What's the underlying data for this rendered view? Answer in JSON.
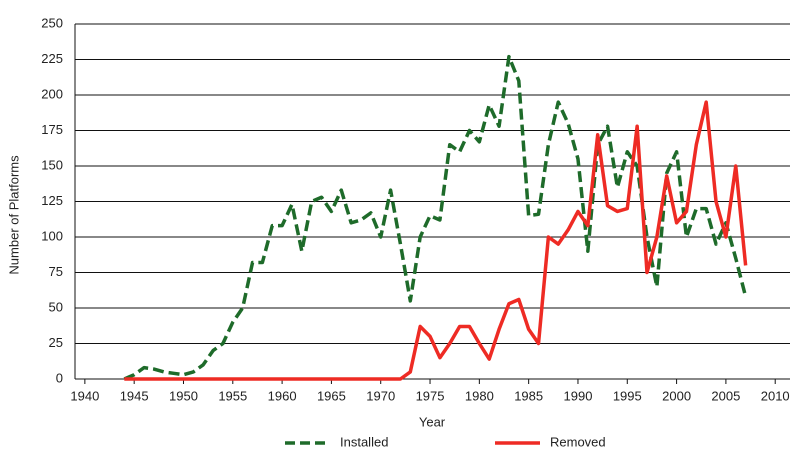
{
  "chart_data": {
    "type": "line",
    "x_label": "Year",
    "y_label": "Number of Platforms",
    "x": [
      1944,
      1945,
      1946,
      1947,
      1948,
      1949,
      1950,
      1951,
      1952,
      1953,
      1954,
      1955,
      1956,
      1957,
      1958,
      1959,
      1960,
      1961,
      1962,
      1963,
      1964,
      1965,
      1966,
      1967,
      1968,
      1969,
      1970,
      1971,
      1972,
      1973,
      1974,
      1975,
      1976,
      1977,
      1978,
      1979,
      1980,
      1981,
      1982,
      1983,
      1984,
      1985,
      1986,
      1987,
      1988,
      1989,
      1990,
      1991,
      1992,
      1993,
      1994,
      1995,
      1996,
      1997,
      1998,
      1999,
      2000,
      2001,
      2002,
      2003,
      2004,
      2005,
      2006,
      2007
    ],
    "series": [
      {
        "name": "Installed",
        "color": "#1e6b2a",
        "dashed": true,
        "values": [
          0,
          3,
          8,
          7,
          5,
          4,
          3,
          5,
          10,
          20,
          25,
          40,
          50,
          82,
          82,
          108,
          108,
          123,
          90,
          125,
          128,
          118,
          133,
          110,
          112,
          117,
          100,
          133,
          95,
          55,
          100,
          115,
          112,
          165,
          160,
          175,
          167,
          193,
          178,
          227,
          210,
          115,
          116,
          165,
          195,
          180,
          155,
          90,
          165,
          178,
          135,
          160,
          150,
          100,
          65,
          145,
          160,
          100,
          120,
          120,
          95,
          110,
          85,
          58
        ]
      },
      {
        "name": "Removed",
        "color": "#ee2b24",
        "dashed": false,
        "values": [
          0,
          0,
          0,
          0,
          0,
          0,
          0,
          0,
          0,
          0,
          0,
          0,
          0,
          0,
          0,
          0,
          0,
          0,
          0,
          0,
          0,
          0,
          0,
          0,
          0,
          0,
          0,
          0,
          0,
          5,
          37,
          30,
          15,
          25,
          37,
          37,
          25,
          14,
          35,
          53,
          56,
          35,
          25,
          100,
          95,
          105,
          118,
          108,
          172,
          122,
          118,
          120,
          178,
          75,
          100,
          143,
          110,
          118,
          165,
          195,
          125,
          100,
          150,
          80
        ]
      }
    ],
    "xlim": [
      1939,
      2011.5
    ],
    "xticks": [
      1940,
      1945,
      1950,
      1955,
      1960,
      1965,
      1970,
      1975,
      1980,
      1985,
      1990,
      1995,
      2000,
      2005,
      2010
    ],
    "ylim": [
      0,
      250
    ],
    "yticks": [
      0,
      25,
      50,
      75,
      100,
      125,
      150,
      175,
      200,
      225,
      250
    ],
    "grid": true
  }
}
